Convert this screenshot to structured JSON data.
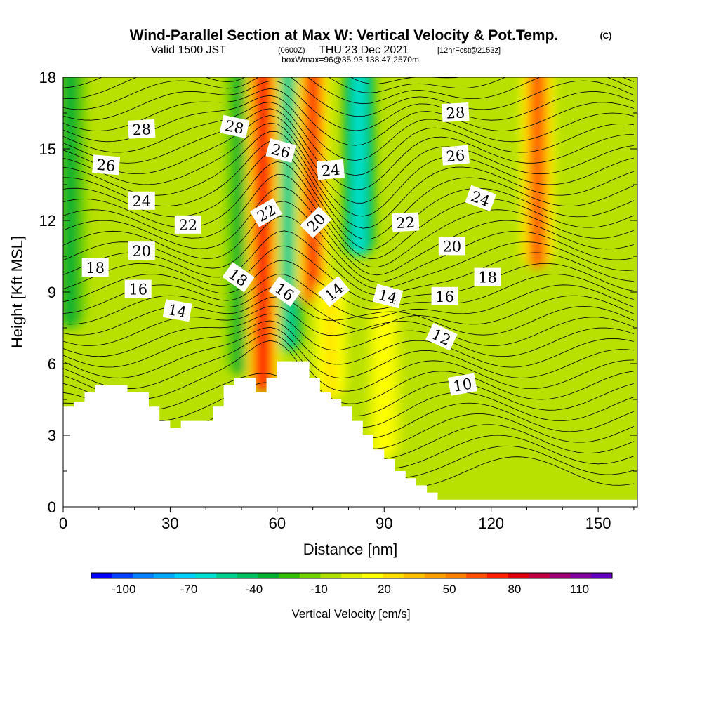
{
  "title": {
    "main": "Wind-Parallel Section at Max W: Vertical Velocity & Pot.Temp.",
    "copyright": "(C)",
    "valid_prefix": "Valid 1500 JST",
    "valid_utc": "(0600Z)",
    "valid_date": "THU 23 Dec 2021",
    "forecast": "[12hrFcst@2153z]",
    "box": "boxWmax=96@35.93,138.47,2570m"
  },
  "chart_data": {
    "type": "heatmap",
    "xlabel": "Distance [nm]",
    "ylabel": "Height [Kft MSL]",
    "xlim": [
      0,
      161
    ],
    "ylim": [
      0,
      18
    ],
    "x_ticks": [
      "0",
      "30",
      "60",
      "90",
      "120",
      "150"
    ],
    "y_ticks": [
      "0",
      "3",
      "6",
      "9",
      "12",
      "15",
      "18"
    ],
    "colorbar": {
      "title": "Vertical Velocity [cm/s]",
      "tick_labels": [
        "-100",
        "-70",
        "-40",
        "-10",
        "20",
        "50",
        "80",
        "110"
      ],
      "colors": [
        "#0000ff",
        "#0040ff",
        "#0080ff",
        "#00a8ff",
        "#00d0ff",
        "#00e0d0",
        "#00d090",
        "#00c060",
        "#00b030",
        "#30c000",
        "#70d000",
        "#b0e000",
        "#e0f000",
        "#ffff00",
        "#ffe000",
        "#ffc000",
        "#ffa000",
        "#ff8000",
        "#ff5000",
        "#ff2000",
        "#e00010",
        "#c00040",
        "#a00070",
        "#8000a0",
        "#6000c0"
      ]
    },
    "terrain_kft": [
      [
        0,
        4.2
      ],
      [
        3,
        4.2
      ],
      [
        3,
        4.4
      ],
      [
        6,
        4.4
      ],
      [
        6,
        4.8
      ],
      [
        9,
        4.8
      ],
      [
        9,
        5.1
      ],
      [
        18,
        5.1
      ],
      [
        18,
        4.8
      ],
      [
        24,
        4.8
      ],
      [
        24,
        4.2
      ],
      [
        27,
        4.2
      ],
      [
        27,
        3.6
      ],
      [
        30,
        3.6
      ],
      [
        30,
        3.3
      ],
      [
        33,
        3.3
      ],
      [
        33,
        3.6
      ],
      [
        42,
        3.6
      ],
      [
        42,
        4.2
      ],
      [
        45,
        4.2
      ],
      [
        45,
        5.1
      ],
      [
        48,
        5.1
      ],
      [
        48,
        5.4
      ],
      [
        54,
        5.4
      ],
      [
        54,
        4.8
      ],
      [
        57,
        4.8
      ],
      [
        57,
        5.4
      ],
      [
        60,
        5.4
      ],
      [
        60,
        6.1
      ],
      [
        69,
        6.1
      ],
      [
        69,
        5.4
      ],
      [
        72,
        5.4
      ],
      [
        72,
        4.8
      ],
      [
        75,
        4.8
      ],
      [
        75,
        4.5
      ],
      [
        78,
        4.5
      ],
      [
        78,
        4.2
      ],
      [
        81,
        4.2
      ],
      [
        81,
        3.6
      ],
      [
        84,
        3.6
      ],
      [
        84,
        3.0
      ],
      [
        87,
        3.0
      ],
      [
        87,
        2.4
      ],
      [
        90,
        2.4
      ],
      [
        90,
        2.0
      ],
      [
        93,
        2.0
      ],
      [
        93,
        1.5
      ],
      [
        96,
        1.5
      ],
      [
        96,
        1.2
      ],
      [
        99,
        1.2
      ],
      [
        99,
        0.9
      ],
      [
        102,
        0.9
      ],
      [
        102,
        0.6
      ],
      [
        105,
        0.6
      ],
      [
        105,
        0.3
      ],
      [
        161,
        0.3
      ],
      [
        161,
        0
      ]
    ],
    "updrafts": [
      {
        "x": 56,
        "top": 18,
        "bottom": 4.8,
        "w_max": 95
      },
      {
        "x": 70,
        "top": 18,
        "bottom": 8.5,
        "w_max": 85
      },
      {
        "x": 75,
        "top": 9,
        "bottom": 4.5,
        "w_max": 35
      },
      {
        "x": 90,
        "top": 8,
        "bottom": 2,
        "w_max": 25
      },
      {
        "x": 133,
        "top": 18,
        "bottom": 10,
        "w_max": 75
      }
    ],
    "downdrafts": [
      {
        "x": 50,
        "top": 18,
        "bottom": 5.5,
        "w_min": -35
      },
      {
        "x": 63,
        "top": 18,
        "bottom": 6.5,
        "w_min": -55
      },
      {
        "x": 83,
        "top": 18,
        "bottom": 10.5,
        "w_min": -65
      },
      {
        "x": 2,
        "top": 18,
        "bottom": 7.5,
        "w_min": -35
      }
    ],
    "isentrope_labels": [
      {
        "text": "28",
        "x": 22,
        "y": 15.8,
        "angle": -3
      },
      {
        "text": "28",
        "x": 48,
        "y": 15.9,
        "angle": 12
      },
      {
        "text": "28",
        "x": 110,
        "y": 16.5,
        "angle": -3
      },
      {
        "text": "26",
        "x": 12,
        "y": 14.3,
        "angle": 5
      },
      {
        "text": "26",
        "x": 61,
        "y": 14.9,
        "angle": 15
      },
      {
        "text": "26",
        "x": 110,
        "y": 14.7,
        "angle": -5
      },
      {
        "text": "24",
        "x": 22,
        "y": 12.8,
        "angle": 0
      },
      {
        "text": "24",
        "x": 75,
        "y": 14.1,
        "angle": -5
      },
      {
        "text": "24",
        "x": 117,
        "y": 12.9,
        "angle": 20
      },
      {
        "text": "22",
        "x": 35,
        "y": 11.8,
        "angle": 0
      },
      {
        "text": "22",
        "x": 57,
        "y": 12.3,
        "angle": -30
      },
      {
        "text": "22",
        "x": 96,
        "y": 11.9,
        "angle": -3
      },
      {
        "text": "20",
        "x": 22,
        "y": 10.7,
        "angle": 0
      },
      {
        "text": "20",
        "x": 71,
        "y": 11.9,
        "angle": -45
      },
      {
        "text": "20",
        "x": 109,
        "y": 10.9,
        "angle": 0
      },
      {
        "text": "18",
        "x": 9,
        "y": 10.0,
        "angle": 0
      },
      {
        "text": "18",
        "x": 49,
        "y": 9.6,
        "angle": 35
      },
      {
        "text": "18",
        "x": 119,
        "y": 9.6,
        "angle": 0
      },
      {
        "text": "16",
        "x": 21,
        "y": 9.1,
        "angle": 0
      },
      {
        "text": "16",
        "x": 62,
        "y": 9.0,
        "angle": 35
      },
      {
        "text": "16",
        "x": 107,
        "y": 8.8,
        "angle": 0
      },
      {
        "text": "14",
        "x": 32,
        "y": 8.2,
        "angle": 10
      },
      {
        "text": "14",
        "x": 76,
        "y": 9.0,
        "angle": -40
      },
      {
        "text": "14",
        "x": 91,
        "y": 8.8,
        "angle": 15
      },
      {
        "text": "12",
        "x": 106,
        "y": 7.1,
        "angle": 25
      },
      {
        "text": "10",
        "x": 112,
        "y": 5.1,
        "angle": -10
      }
    ]
  }
}
